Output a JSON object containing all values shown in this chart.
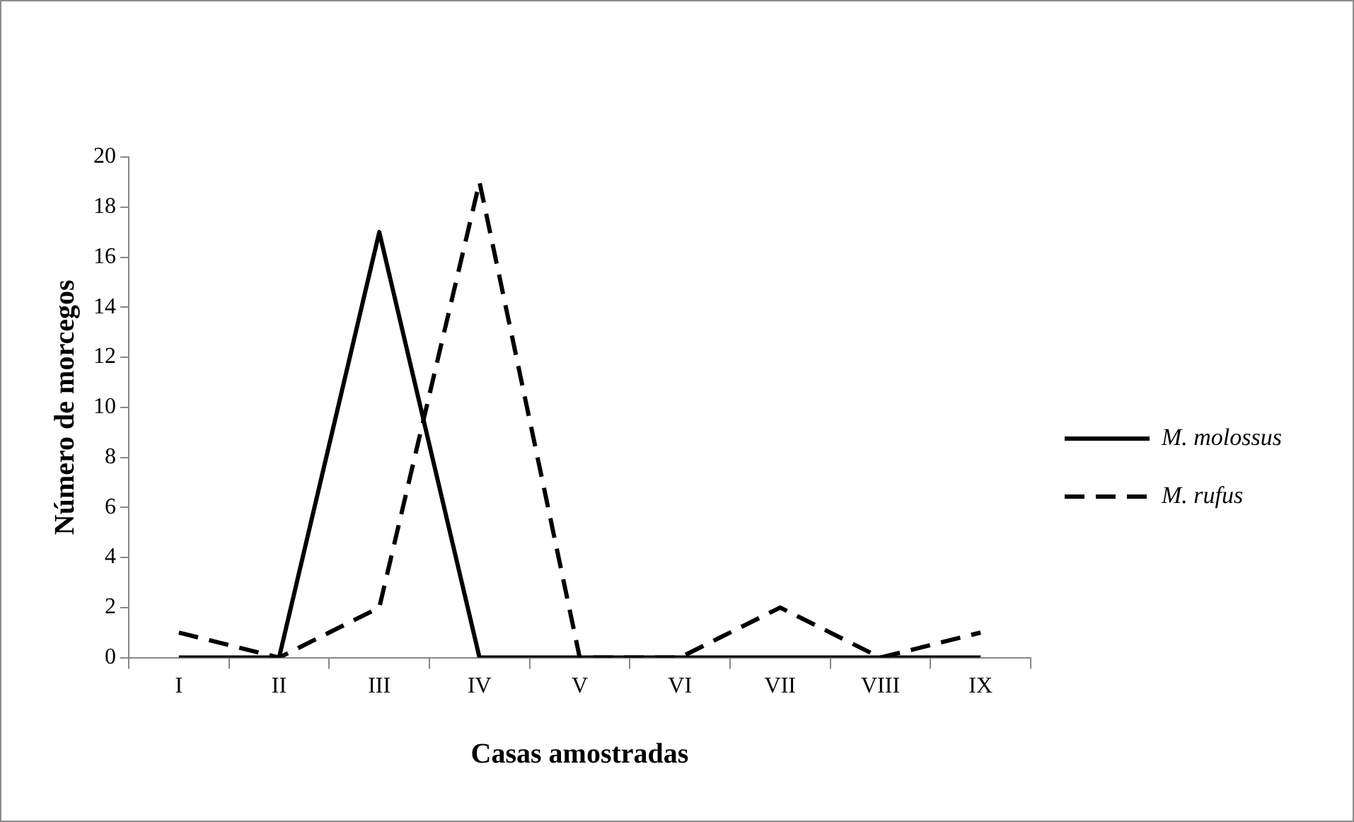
{
  "chart_data": {
    "type": "line",
    "xlabel": "Casas amostradas",
    "ylabel": "Número de morcegos",
    "categories": [
      "I",
      "II",
      "III",
      "IV",
      "V",
      "VI",
      "VII",
      "VIII",
      "IX"
    ],
    "series": [
      {
        "name": "M. molossus",
        "color": "#000000",
        "line_style": "solid",
        "values": [
          0,
          0,
          17,
          0,
          0,
          0,
          0,
          0,
          0
        ]
      },
      {
        "name": "M. rufus",
        "color": "#000000",
        "line_style": "dashed",
        "values": [
          1,
          0,
          2,
          19,
          0,
          0,
          2,
          0,
          1
        ]
      }
    ],
    "ylim": [
      0,
      20
    ],
    "yticks": [
      0,
      2,
      4,
      6,
      8,
      10,
      12,
      14,
      16,
      18,
      20
    ],
    "grid": false,
    "legend": "right",
    "marker": "none"
  }
}
